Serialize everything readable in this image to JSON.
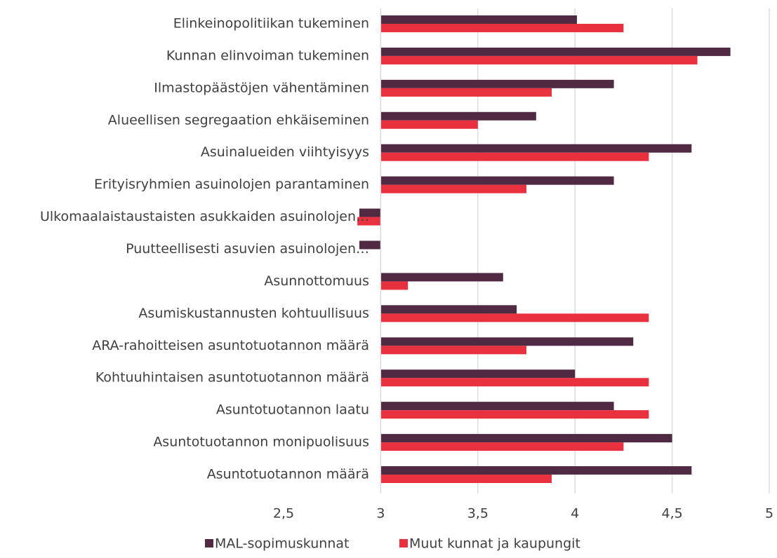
{
  "chart_data": {
    "type": "bar",
    "orientation": "horizontal",
    "categories": [
      "Elinkeinopolitiikan tukeminen",
      "Kunnan elinvoiman tukeminen",
      "Ilmastopäästöjen vähentäminen",
      "Alueellisen segregaation ehkäiseminen",
      "Asuinalueiden viihtyisyys",
      "Erityisryhmien asuinolojen parantaminen",
      "Ulkomaalaistaustaisten asukkaiden asuinolojen…",
      "Puutteellisesti asuvien asuinolojen…",
      "Asunnottomuus",
      "Asumiskustannusten kohtuullisuus",
      "ARA-rahoitteisen asuntotuotannon määrä",
      "Kohtuuhintaisen asuntotuotannon määrä",
      "Asuntotuotannon laatu",
      "Asuntotuotannon monipuolisuus",
      "Asuntotuotannon määrä"
    ],
    "series": [
      {
        "name": "MAL-sopimuskunnat",
        "color": "#4f2a42",
        "values": [
          4.01,
          4.8,
          4.2,
          3.8,
          4.6,
          4.2,
          2.89,
          2.89,
          3.63,
          3.7,
          4.3,
          4.0,
          4.2,
          4.5,
          4.6
        ]
      },
      {
        "name": "Muut kunnat ja kaupungit",
        "color": "#e8303f",
        "values": [
          4.25,
          4.63,
          3.88,
          3.5,
          4.38,
          3.75,
          2.88,
          null,
          3.14,
          4.38,
          3.75,
          4.38,
          4.38,
          4.25,
          3.88
        ]
      }
    ],
    "xlim": [
      2.5,
      5
    ],
    "xticks": [
      {
        "value": 2.5,
        "label": "2,5"
      },
      3,
      {
        "value": 3.5,
        "label": "3,5"
      },
      4,
      {
        "value": 4.5,
        "label": "4,5"
      },
      5
    ],
    "x_axis_crosses_at": 3,
    "grid": true,
    "legend": "bottom"
  }
}
